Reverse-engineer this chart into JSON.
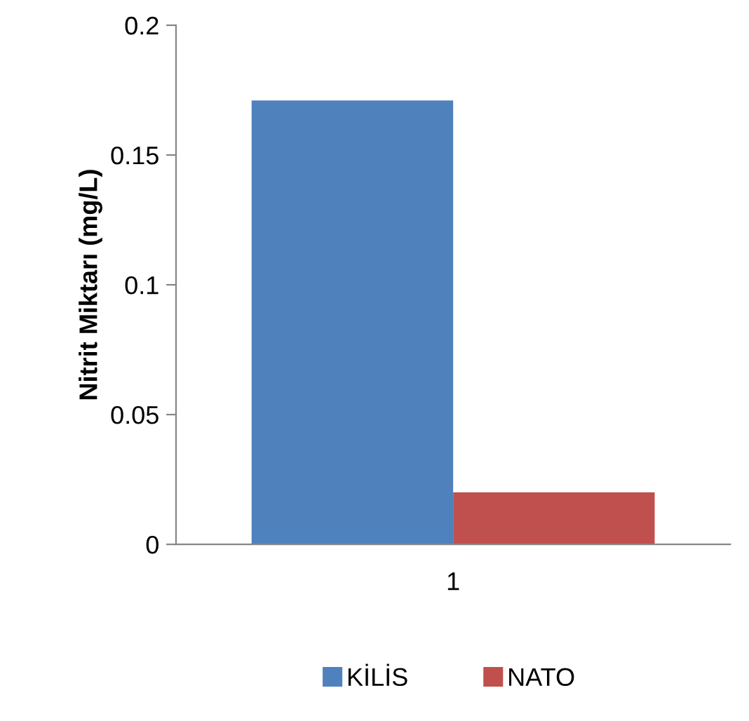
{
  "chart_data": {
    "type": "bar",
    "ylabel": "Nitrit Miktarı (mg/L)",
    "categories": [
      "1"
    ],
    "series": [
      {
        "name": "KİLİS",
        "color": "#4f81bd",
        "values": [
          0.171
        ]
      },
      {
        "name": "NATO",
        "color": "#c0504d",
        "values": [
          0.02
        ]
      }
    ],
    "ylim": [
      0,
      0.2
    ],
    "yticks": [
      0,
      0.05,
      0.1,
      0.15,
      0.2
    ],
    "grid": false,
    "legend": "bottom"
  }
}
